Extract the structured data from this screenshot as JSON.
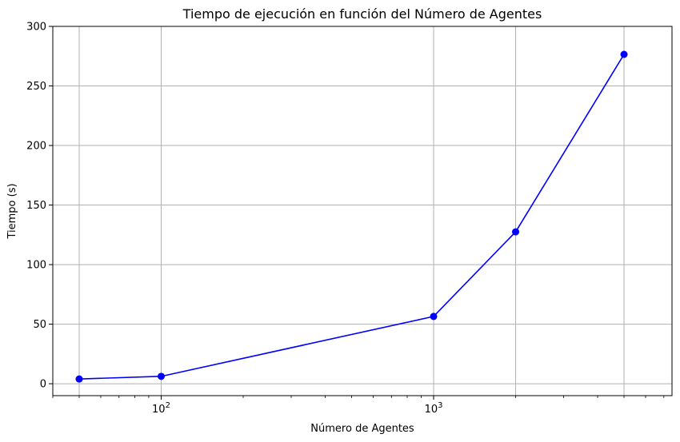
{
  "chart_data": {
    "type": "line",
    "title": "Tiempo de ejecución en función del Número de Agentes",
    "xlabel": "Número de Agentes",
    "ylabel": "Tiempo (s)",
    "x_scale": "log",
    "x_tick_labels": [
      {
        "base": "10",
        "exp": "2",
        "value": 100
      },
      {
        "base": "10",
        "exp": "3",
        "value": 1000
      }
    ],
    "xlim": [
      40,
      7500
    ],
    "ylim": [
      -10,
      300
    ],
    "y_ticks": [
      0,
      50,
      100,
      150,
      200,
      250,
      300
    ],
    "grid": true,
    "series": [
      {
        "color": "#0000ff",
        "marker": "circle",
        "x": [
          50,
          100,
          1000,
          2000,
          5000
        ],
        "y": [
          4,
          6.2,
          56.5,
          127.5,
          276.5
        ]
      }
    ]
  }
}
